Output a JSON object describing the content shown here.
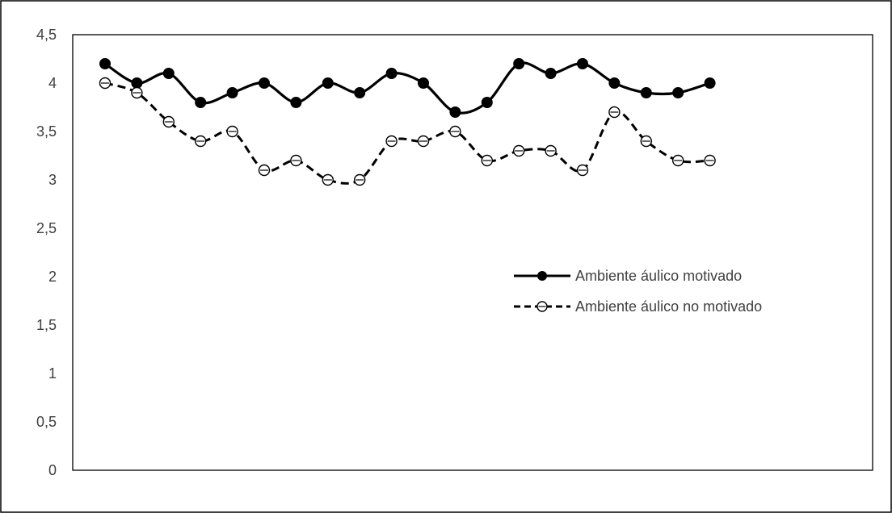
{
  "chart_data": {
    "type": "line",
    "title": "",
    "xlabel": "",
    "ylabel": "",
    "x": [
      1,
      2,
      3,
      4,
      5,
      6,
      7,
      8,
      9,
      10,
      11,
      12,
      13,
      14,
      15,
      16,
      17,
      18,
      19,
      20
    ],
    "ylim": [
      0,
      4.5
    ],
    "y_ticks": [
      "0",
      "0,5",
      "1",
      "1,5",
      "2",
      "2,5",
      "3",
      "3,5",
      "4",
      "4,5"
    ],
    "y_tick_values": [
      0,
      0.5,
      1,
      1.5,
      2,
      2.5,
      3,
      3.5,
      4,
      4.5
    ],
    "grid": false,
    "legend_position": "right-middle",
    "series": [
      {
        "name": "Ambiente áulico motivado",
        "style": "solid",
        "marker": "filled-circle",
        "color": "#000000",
        "values": [
          4.2,
          4.0,
          4.1,
          3.8,
          3.9,
          4.0,
          3.8,
          4.0,
          3.9,
          4.1,
          4.0,
          3.7,
          3.8,
          4.2,
          4.1,
          4.2,
          4.0,
          3.9,
          3.9,
          4.0
        ]
      },
      {
        "name": "Ambiente áulico no motivado",
        "style": "dashed",
        "marker": "open-circle",
        "color": "#000000",
        "values": [
          4.0,
          3.9,
          3.6,
          3.4,
          3.5,
          3.1,
          3.2,
          3.0,
          3.0,
          3.4,
          3.4,
          3.5,
          3.2,
          3.3,
          3.3,
          3.1,
          3.7,
          3.4,
          3.2,
          3.2
        ]
      }
    ]
  }
}
